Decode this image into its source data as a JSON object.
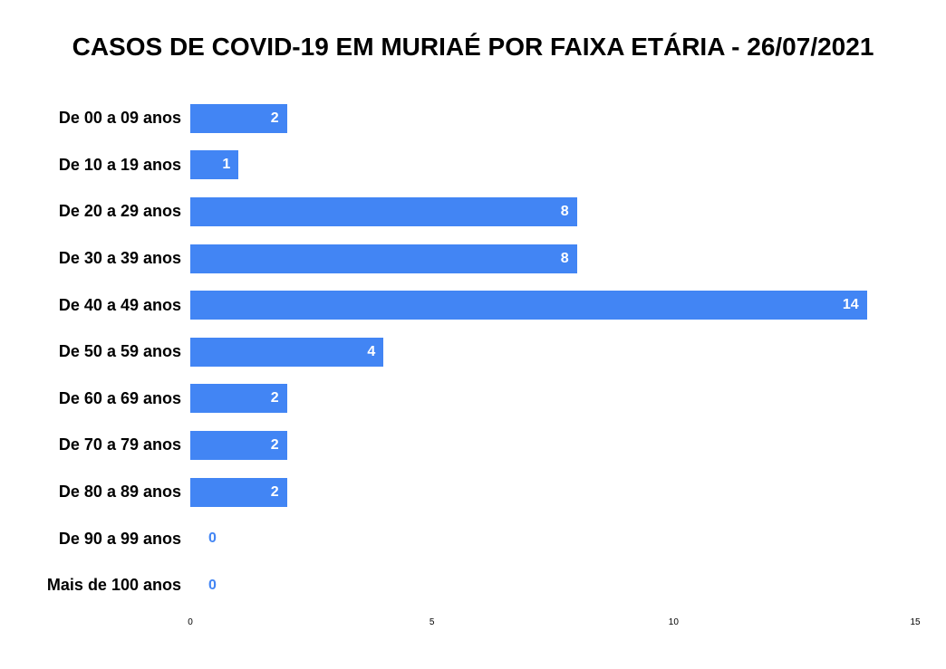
{
  "chart_data": {
    "type": "bar",
    "orientation": "horizontal",
    "title": "CASOS DE COVID-19 EM MURIAÉ POR FAIXA ETÁRIA - 26/07/2021",
    "categories": [
      "De 00 a 09 anos",
      "De 10 a 19 anos",
      "De 20 a 29 anos",
      "De 30 a 39 anos",
      "De 40 a 49 anos",
      "De 50 a 59 anos",
      "De 60 a 69 anos",
      "De 70 a 79 anos",
      "De 80 a 89 anos",
      "De 90 a 99 anos",
      "Mais de 100 anos"
    ],
    "values": [
      2,
      1,
      8,
      8,
      14,
      4,
      2,
      2,
      2,
      0,
      0
    ],
    "xlabel": "",
    "ylabel": "",
    "xlim": [
      0,
      15
    ],
    "x_ticks": [
      0,
      5,
      10,
      15
    ],
    "grid": false,
    "legend": "none",
    "bar_color": "#4285F4",
    "value_label_color_inside": "#FFFFFF",
    "value_label_color_zero": "#4285F4",
    "title_color": "#000000",
    "category_label_color": "#000000",
    "axis_tick_color": "#000000",
    "background_color": "#FFFFFF"
  }
}
